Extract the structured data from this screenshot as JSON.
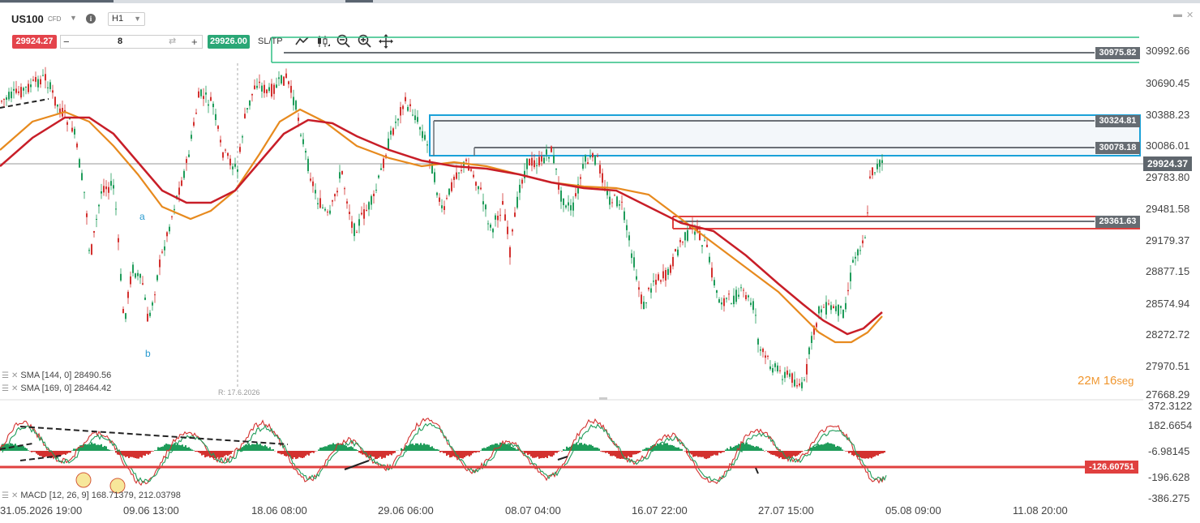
{
  "header": {
    "symbol": "US100",
    "symbol_type": "CFD",
    "timeframe": "H1",
    "sell_price": "29924.27",
    "buy_price": "29926.00",
    "quantity": "8",
    "sltp_label": "SL/TP",
    "minus_label": "−",
    "plus_label": "+"
  },
  "chart": {
    "price_axis": [
      "30992.66",
      "30690.45",
      "30388.23",
      "30086.01",
      "29783.80",
      "29481.58",
      "29179.37",
      "28877.15",
      "28574.94",
      "28272.72",
      "27970.51",
      "27668.29"
    ],
    "time_axis": [
      "31.05.2026 19:00",
      "09.06 13:00",
      "18.06 08:00",
      "29.06 06:00",
      "08.07 04:00",
      "16.07 22:00",
      "27.07 15:00",
      "05.08 09:00",
      "11.08 20:00"
    ],
    "level_labels": [
      "30975.82",
      "30324.81",
      "30078.18",
      "29361.63"
    ],
    "current_price": "29924.37",
    "wave_labels": [
      "a",
      "b"
    ],
    "ruler_label": "R: 17.6.2026",
    "sma1": "SMA [144, 0] 28490.56",
    "sma2": "SMA [169, 0] 28464.42",
    "countdown_minutes": "22",
    "countdown_m_unit": "M",
    "countdown_seconds": "16",
    "countdown_s_unit": "seg",
    "colors": {
      "sma144": "#e78a1e",
      "sma169": "#c81e28",
      "bull": "#1f9c5a",
      "bear": "#d3312f",
      "supply": "#1aa1d8",
      "resistance": "#e0403f"
    }
  },
  "macd": {
    "axis": [
      "372.3122",
      "182.6654",
      "-6.98145",
      "-196.628",
      "-386.275"
    ],
    "level_label": "-126.60751",
    "legend": "MACD [12, 26, 9] 168.71379, 212.03798"
  }
}
